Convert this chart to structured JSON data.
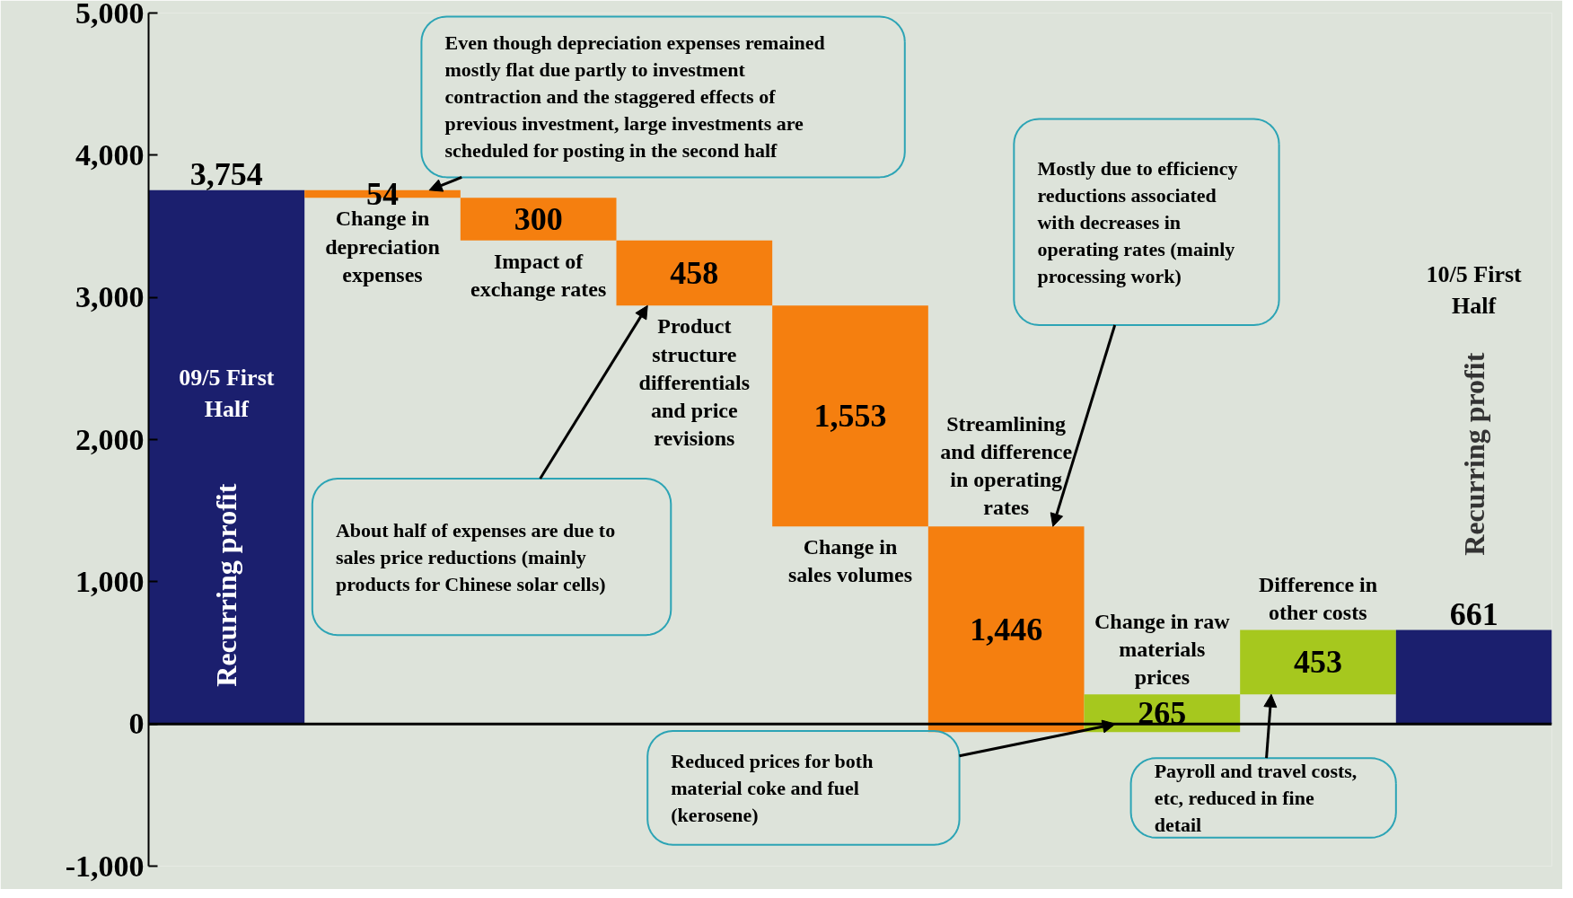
{
  "chart_data": {
    "type": "bar",
    "categories": [
      "09/5 First Half",
      "Change in depreciation expenses",
      "Impact of exchange rates",
      "Product structure differentials and price revisions",
      "Change in sales volumes",
      "Streamlining and difference in operating rates",
      "Change in raw materials prices",
      "Difference in other costs",
      "10/5 First Half"
    ],
    "base": [
      0,
      3754,
      3700,
      3400,
      2942,
      1389,
      -57,
      208,
      0
    ],
    "values": [
      3754,
      -54,
      -300,
      -458,
      -1553,
      -1446,
      265,
      453,
      661
    ],
    "value_labels": [
      "3,754",
      "54",
      "300",
      "458",
      "1,553",
      "1,446",
      "265",
      "453",
      "661"
    ],
    "colors": [
      "#1b1f6e",
      "#f57f0f",
      "#f57f0f",
      "#f57f0f",
      "#f57f0f",
      "#f57f0f",
      "#a6c81e",
      "#a6c81e",
      "#1b1f6e"
    ],
    "ylim": [
      -1000,
      5000
    ],
    "yticks": [
      {
        "value": -1000,
        "label": "-1,000"
      },
      0,
      {
        "value": 1000,
        "label": "1,000"
      },
      {
        "value": 2000,
        "label": "2,000"
      },
      {
        "value": 3000,
        "label": "3,000"
      },
      {
        "value": 4000,
        "label": "4,000"
      },
      {
        "value": 5000,
        "label": "5,000"
      }
    ],
    "tick_labels": "y",
    "grid": false,
    "ref_lines": [
      {
        "axis": "y",
        "value": 0,
        "color": "#000000"
      }
    ],
    "annotations": [
      "Even though depreciation expenses remained mostly flat due partly to investment contraction and the staggered effects of previous investment, large investments are scheduled for posting in the second half",
      "About half of expenses are due to sales price reductions (mainly products for Chinese solar cells)",
      "Mostly due to efficiency reductions associated with decreases in operating rates (mainly processing work)",
      "Reduced prices for both material coke and fuel (kerosene)",
      "Payroll and travel costs, etc, reduced in fine detail",
      "Recurring profit",
      "Recurring profit"
    ]
  }
}
